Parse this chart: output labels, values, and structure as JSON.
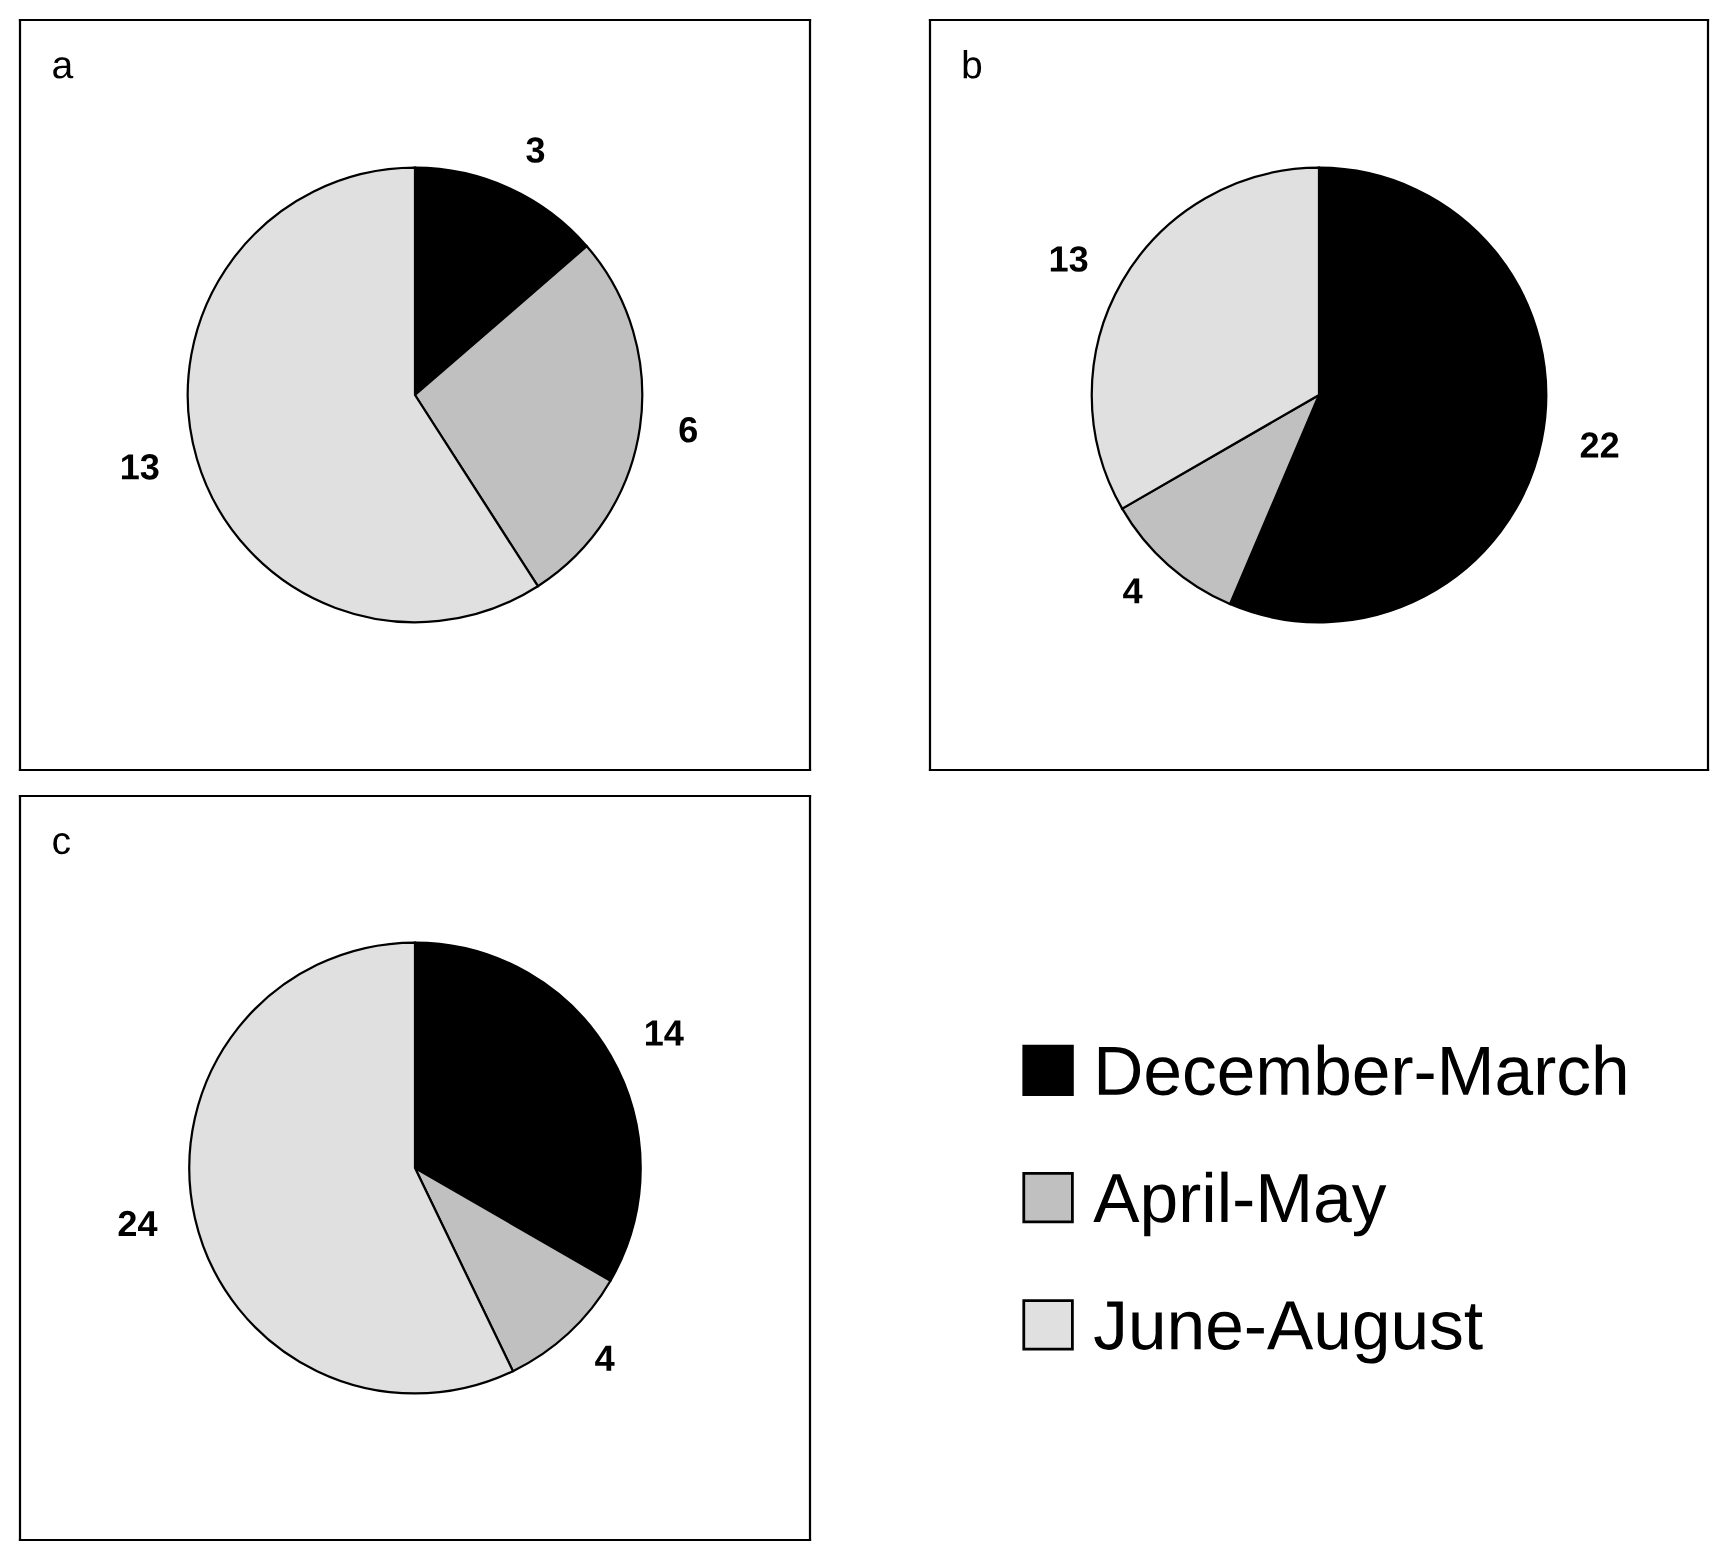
{
  "chart_data": [
    {
      "type": "pie",
      "title": "a",
      "categories": [
        "December-March",
        "April-May",
        "June-August"
      ],
      "values": [
        3,
        6,
        13
      ],
      "colors": [
        "#000000",
        "#c0c0c0",
        "#e0e0e0"
      ],
      "data_labels": true,
      "legend": "bottom right"
    },
    {
      "type": "pie",
      "title": "b",
      "categories": [
        null,
        null,
        null
      ],
      "values": [
        22,
        4,
        13
      ],
      "colors": [
        "#000000",
        "#c0c0c0",
        "#e0e0e0"
      ],
      "data_labels": true
    },
    {
      "type": "pie",
      "title": "c",
      "categories": [
        null,
        null,
        null
      ],
      "values": [
        14,
        4,
        24
      ],
      "colors": [
        "#000000",
        "#c0c0c0",
        "#e0e0e0"
      ],
      "data_labels": true
    }
  ]
}
